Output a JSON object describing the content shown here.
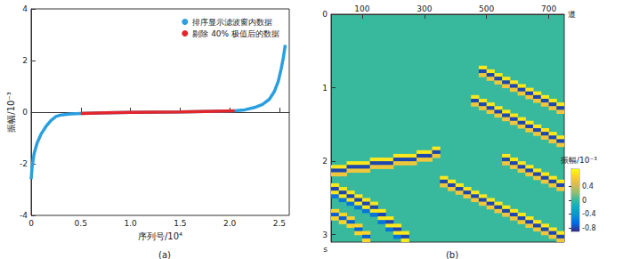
{
  "chart_data": [
    {
      "type": "line",
      "caption": "(a)",
      "x_label": "序列号/10⁴",
      "y_label": "振幅/10⁻³",
      "xlim": [
        0,
        2.6
      ],
      "xticks": [
        0,
        0.5,
        {
          "value": 1,
          "label": "1.0"
        },
        1.5,
        {
          "value": 2,
          "label": "2.0"
        },
        2.5
      ],
      "ylim": [
        -4,
        4
      ],
      "yticks": [
        -4,
        -2,
        0,
        2,
        4
      ],
      "legend": "top-right",
      "grid": false,
      "series": [
        {
          "name": "排序显示滤波窗内数据",
          "color": "#2a9fe0",
          "marker": "circle",
          "x": [
            0,
            0.01,
            0.03,
            0.06,
            0.1,
            0.15,
            0.2,
            0.25,
            0.3,
            0.4,
            0.5,
            0.75,
            1,
            1.25,
            1.5,
            1.75,
            2.05,
            2.15,
            2.25,
            2.33,
            2.4,
            2.45,
            2.49,
            2.52,
            2.54,
            2.56
          ],
          "values": [
            -2.6,
            -2.1,
            -1.6,
            -1.2,
            -0.85,
            -0.55,
            -0.32,
            -0.17,
            -0.11,
            -0.07,
            -0.05,
            -0.03,
            -0.01,
            0,
            0.01,
            0.03,
            0.05,
            0.09,
            0.18,
            0.3,
            0.5,
            0.8,
            1.2,
            1.7,
            2.1,
            2.6
          ]
        },
        {
          "name": "剔除 40% 极值后的数据",
          "color": "#e3262b",
          "marker": "circle",
          "x": [
            0.5,
            0.75,
            1,
            1.25,
            1.5,
            1.75,
            2.05
          ],
          "values": [
            -0.05,
            -0.03,
            -0.01,
            0,
            0.01,
            0.03,
            0.05
          ]
        }
      ]
    },
    {
      "type": "heatmap",
      "caption": "(b)",
      "x_label": "道",
      "y_label": "s",
      "xlim": [
        0,
        750
      ],
      "xticks": [
        100,
        300,
        500,
        700
      ],
      "ylim": [
        0,
        3.1
      ],
      "yticks": [
        0,
        1,
        2,
        3
      ],
      "cell_width": 25,
      "cell_height": 0.05,
      "colorbar_label": "振幅/10⁻³",
      "colorbar_range": [
        -0.9,
        0.9
      ],
      "colorbar_ticks": [
        -0.8,
        -0.4,
        0,
        0.4
      ],
      "cells": [
        [
          0,
          2.05,
          0.8
        ],
        [
          0,
          2.1,
          -0.8
        ],
        [
          0,
          2.15,
          0.6
        ],
        [
          25,
          2.05,
          0.8
        ],
        [
          25,
          2.1,
          -0.8
        ],
        [
          25,
          2.15,
          0.6
        ],
        [
          50,
          2,
          0.8
        ],
        [
          50,
          2.05,
          -0.8
        ],
        [
          50,
          2.1,
          0.6
        ],
        [
          75,
          2,
          0.8
        ],
        [
          75,
          2.05,
          -0.8
        ],
        [
          75,
          2.1,
          0.6
        ],
        [
          100,
          2,
          0.8
        ],
        [
          100,
          2.05,
          -0.8
        ],
        [
          100,
          2.1,
          0.6
        ],
        [
          125,
          1.95,
          0.8
        ],
        [
          125,
          2,
          -0.8
        ],
        [
          125,
          2.05,
          0.6
        ],
        [
          150,
          1.95,
          0.8
        ],
        [
          150,
          2,
          -0.8
        ],
        [
          150,
          2.05,
          0.6
        ],
        [
          175,
          1.95,
          0.8
        ],
        [
          175,
          2,
          -0.8
        ],
        [
          175,
          2.05,
          0.6
        ],
        [
          200,
          1.9,
          0.8
        ],
        [
          200,
          1.95,
          -0.8
        ],
        [
          200,
          2,
          0.6
        ],
        [
          225,
          1.9,
          0.8
        ],
        [
          225,
          1.95,
          -0.8
        ],
        [
          225,
          2,
          0.6
        ],
        [
          250,
          1.9,
          0.8
        ],
        [
          250,
          1.95,
          -0.8
        ],
        [
          250,
          2,
          0.6
        ],
        [
          275,
          1.85,
          0.8
        ],
        [
          275,
          1.9,
          -0.8
        ],
        [
          275,
          1.95,
          0.6
        ],
        [
          300,
          1.85,
          0.8
        ],
        [
          300,
          1.9,
          -0.8
        ],
        [
          300,
          1.95,
          0.6
        ],
        [
          325,
          1.8,
          0.8
        ],
        [
          325,
          1.85,
          -0.8
        ],
        [
          325,
          1.9,
          0.6
        ],
        [
          0,
          2.3,
          0.8
        ],
        [
          0,
          2.35,
          -0.8
        ],
        [
          0,
          2.4,
          0.8
        ],
        [
          0,
          2.45,
          -0.6
        ],
        [
          25,
          2.35,
          0.8
        ],
        [
          25,
          2.4,
          -0.8
        ],
        [
          25,
          2.45,
          0.8
        ],
        [
          25,
          2.5,
          -0.6
        ],
        [
          50,
          2.4,
          0.8
        ],
        [
          50,
          2.45,
          -0.8
        ],
        [
          50,
          2.5,
          0.8
        ],
        [
          50,
          2.55,
          -0.6
        ],
        [
          75,
          2.45,
          0.8
        ],
        [
          75,
          2.5,
          -0.8
        ],
        [
          75,
          2.55,
          0.8
        ],
        [
          75,
          2.6,
          -0.6
        ],
        [
          100,
          2.5,
          0.8
        ],
        [
          100,
          2.55,
          -0.8
        ],
        [
          100,
          2.6,
          0.8
        ],
        [
          100,
          2.65,
          -0.6
        ],
        [
          125,
          2.55,
          0.8
        ],
        [
          125,
          2.6,
          -0.8
        ],
        [
          125,
          2.65,
          0.8
        ],
        [
          125,
          2.7,
          -0.6
        ],
        [
          150,
          2.65,
          0.8
        ],
        [
          150,
          2.7,
          -0.8
        ],
        [
          150,
          2.75,
          0.8
        ],
        [
          150,
          2.8,
          -0.6
        ],
        [
          175,
          2.75,
          0.8
        ],
        [
          175,
          2.8,
          -0.8
        ],
        [
          175,
          2.85,
          0.8
        ],
        [
          175,
          2.9,
          -0.6
        ],
        [
          200,
          2.85,
          0.8
        ],
        [
          200,
          2.9,
          -0.8
        ],
        [
          200,
          2.95,
          0.8
        ],
        [
          200,
          3,
          -0.6
        ],
        [
          225,
          2.95,
          0.8
        ],
        [
          225,
          3,
          -0.8
        ],
        [
          225,
          3.05,
          0.8
        ],
        [
          0,
          2.65,
          0.7
        ],
        [
          0,
          2.7,
          -0.7
        ],
        [
          0,
          2.75,
          0.7
        ],
        [
          25,
          2.7,
          0.7
        ],
        [
          25,
          2.75,
          -0.7
        ],
        [
          25,
          2.8,
          0.7
        ],
        [
          50,
          2.75,
          0.7
        ],
        [
          50,
          2.8,
          -0.7
        ],
        [
          50,
          2.85,
          0.7
        ],
        [
          75,
          2.85,
          0.7
        ],
        [
          75,
          2.9,
          -0.7
        ],
        [
          75,
          2.95,
          0.7
        ],
        [
          100,
          2.95,
          0.7
        ],
        [
          100,
          3,
          -0.7
        ],
        [
          100,
          3.05,
          0.7
        ],
        [
          475,
          0.7,
          0.8
        ],
        [
          475,
          0.75,
          -0.8
        ],
        [
          475,
          0.8,
          0.6
        ],
        [
          500,
          0.75,
          0.8
        ],
        [
          500,
          0.8,
          -0.8
        ],
        [
          500,
          0.85,
          0.6
        ],
        [
          525,
          0.8,
          0.8
        ],
        [
          525,
          0.85,
          -0.8
        ],
        [
          525,
          0.9,
          0.6
        ],
        [
          550,
          0.85,
          0.8
        ],
        [
          550,
          0.9,
          -0.8
        ],
        [
          550,
          0.95,
          0.6
        ],
        [
          575,
          0.9,
          0.8
        ],
        [
          575,
          0.95,
          -0.8
        ],
        [
          575,
          1,
          0.6
        ],
        [
          600,
          0.95,
          0.8
        ],
        [
          600,
          1,
          -0.8
        ],
        [
          600,
          1.05,
          0.6
        ],
        [
          625,
          1,
          0.8
        ],
        [
          625,
          1.05,
          -0.8
        ],
        [
          625,
          1.1,
          0.6
        ],
        [
          650,
          1.05,
          0.8
        ],
        [
          650,
          1.1,
          -0.8
        ],
        [
          650,
          1.15,
          0.6
        ],
        [
          675,
          1.1,
          0.8
        ],
        [
          675,
          1.15,
          -0.8
        ],
        [
          675,
          1.2,
          0.6
        ],
        [
          700,
          1.15,
          0.8
        ],
        [
          700,
          1.2,
          -0.8
        ],
        [
          700,
          1.25,
          0.6
        ],
        [
          725,
          1.2,
          0.8
        ],
        [
          725,
          1.25,
          -0.8
        ],
        [
          725,
          1.3,
          0.6
        ],
        [
          450,
          1.1,
          0.8
        ],
        [
          450,
          1.15,
          -0.8
        ],
        [
          450,
          1.2,
          0.6
        ],
        [
          475,
          1.15,
          0.8
        ],
        [
          475,
          1.2,
          -0.8
        ],
        [
          475,
          1.25,
          0.6
        ],
        [
          500,
          1.2,
          0.8
        ],
        [
          500,
          1.25,
          -0.8
        ],
        [
          500,
          1.3,
          0.6
        ],
        [
          525,
          1.25,
          0.8
        ],
        [
          525,
          1.3,
          -0.8
        ],
        [
          525,
          1.35,
          0.6
        ],
        [
          550,
          1.3,
          0.8
        ],
        [
          550,
          1.35,
          -0.8
        ],
        [
          550,
          1.4,
          0.6
        ],
        [
          575,
          1.35,
          0.8
        ],
        [
          575,
          1.4,
          -0.8
        ],
        [
          575,
          1.45,
          0.6
        ],
        [
          600,
          1.4,
          0.8
        ],
        [
          600,
          1.45,
          -0.8
        ],
        [
          600,
          1.5,
          0.6
        ],
        [
          625,
          1.45,
          0.8
        ],
        [
          625,
          1.5,
          -0.8
        ],
        [
          625,
          1.55,
          0.6
        ],
        [
          650,
          1.5,
          0.8
        ],
        [
          650,
          1.55,
          -0.8
        ],
        [
          650,
          1.6,
          0.6
        ],
        [
          675,
          1.55,
          0.8
        ],
        [
          675,
          1.6,
          -0.8
        ],
        [
          675,
          1.65,
          0.6
        ],
        [
          700,
          1.6,
          0.8
        ],
        [
          700,
          1.65,
          -0.8
        ],
        [
          700,
          1.7,
          0.6
        ],
        [
          725,
          1.65,
          0.8
        ],
        [
          725,
          1.7,
          -0.8
        ],
        [
          725,
          1.75,
          0.6
        ],
        [
          550,
          1.9,
          0.8
        ],
        [
          550,
          1.95,
          -0.8
        ],
        [
          550,
          2,
          0.6
        ],
        [
          575,
          1.95,
          0.8
        ],
        [
          575,
          2,
          -0.8
        ],
        [
          575,
          2.05,
          0.6
        ],
        [
          600,
          2,
          0.8
        ],
        [
          600,
          2.05,
          -0.8
        ],
        [
          600,
          2.1,
          0.6
        ],
        [
          625,
          2.05,
          0.8
        ],
        [
          625,
          2.1,
          -0.8
        ],
        [
          625,
          2.15,
          0.6
        ],
        [
          650,
          2.1,
          0.8
        ],
        [
          650,
          2.15,
          -0.8
        ],
        [
          650,
          2.2,
          0.6
        ],
        [
          675,
          2.15,
          0.8
        ],
        [
          675,
          2.2,
          -0.8
        ],
        [
          675,
          2.25,
          0.6
        ],
        [
          700,
          2.2,
          0.8
        ],
        [
          700,
          2.25,
          -0.8
        ],
        [
          700,
          2.3,
          0.6
        ],
        [
          725,
          2.25,
          0.8
        ],
        [
          725,
          2.3,
          -0.8
        ],
        [
          725,
          2.35,
          0.6
        ],
        [
          350,
          2.2,
          0.8
        ],
        [
          350,
          2.25,
          -0.8
        ],
        [
          350,
          2.3,
          0.6
        ],
        [
          375,
          2.25,
          0.8
        ],
        [
          375,
          2.3,
          -0.8
        ],
        [
          375,
          2.35,
          0.6
        ],
        [
          400,
          2.3,
          0.8
        ],
        [
          400,
          2.35,
          -0.8
        ],
        [
          400,
          2.4,
          0.6
        ],
        [
          425,
          2.35,
          0.8
        ],
        [
          425,
          2.4,
          -0.8
        ],
        [
          425,
          2.45,
          0.6
        ],
        [
          450,
          2.4,
          0.8
        ],
        [
          450,
          2.45,
          -0.8
        ],
        [
          450,
          2.5,
          0.6
        ],
        [
          475,
          2.45,
          0.8
        ],
        [
          475,
          2.5,
          -0.8
        ],
        [
          475,
          2.55,
          0.6
        ],
        [
          500,
          2.5,
          0.8
        ],
        [
          500,
          2.55,
          -0.8
        ],
        [
          500,
          2.6,
          0.6
        ],
        [
          525,
          2.55,
          0.8
        ],
        [
          525,
          2.6,
          -0.8
        ],
        [
          525,
          2.65,
          0.6
        ],
        [
          550,
          2.6,
          0.8
        ],
        [
          550,
          2.65,
          -0.8
        ],
        [
          550,
          2.7,
          0.6
        ],
        [
          575,
          2.65,
          0.8
        ],
        [
          575,
          2.7,
          -0.8
        ],
        [
          575,
          2.75,
          0.6
        ],
        [
          600,
          2.7,
          0.8
        ],
        [
          600,
          2.75,
          -0.8
        ],
        [
          600,
          2.8,
          0.6
        ],
        [
          625,
          2.75,
          0.8
        ],
        [
          625,
          2.8,
          -0.8
        ],
        [
          625,
          2.85,
          0.6
        ],
        [
          650,
          2.8,
          0.8
        ],
        [
          650,
          2.85,
          -0.8
        ],
        [
          650,
          2.9,
          0.6
        ],
        [
          675,
          2.85,
          0.8
        ],
        [
          675,
          2.9,
          -0.8
        ],
        [
          675,
          2.95,
          0.6
        ],
        [
          700,
          2.9,
          0.8
        ],
        [
          700,
          2.95,
          -0.8
        ],
        [
          700,
          3,
          0.6
        ],
        [
          725,
          2.95,
          0.8
        ],
        [
          725,
          3,
          -0.8
        ],
        [
          725,
          3.05,
          0.6
        ]
      ]
    }
  ]
}
